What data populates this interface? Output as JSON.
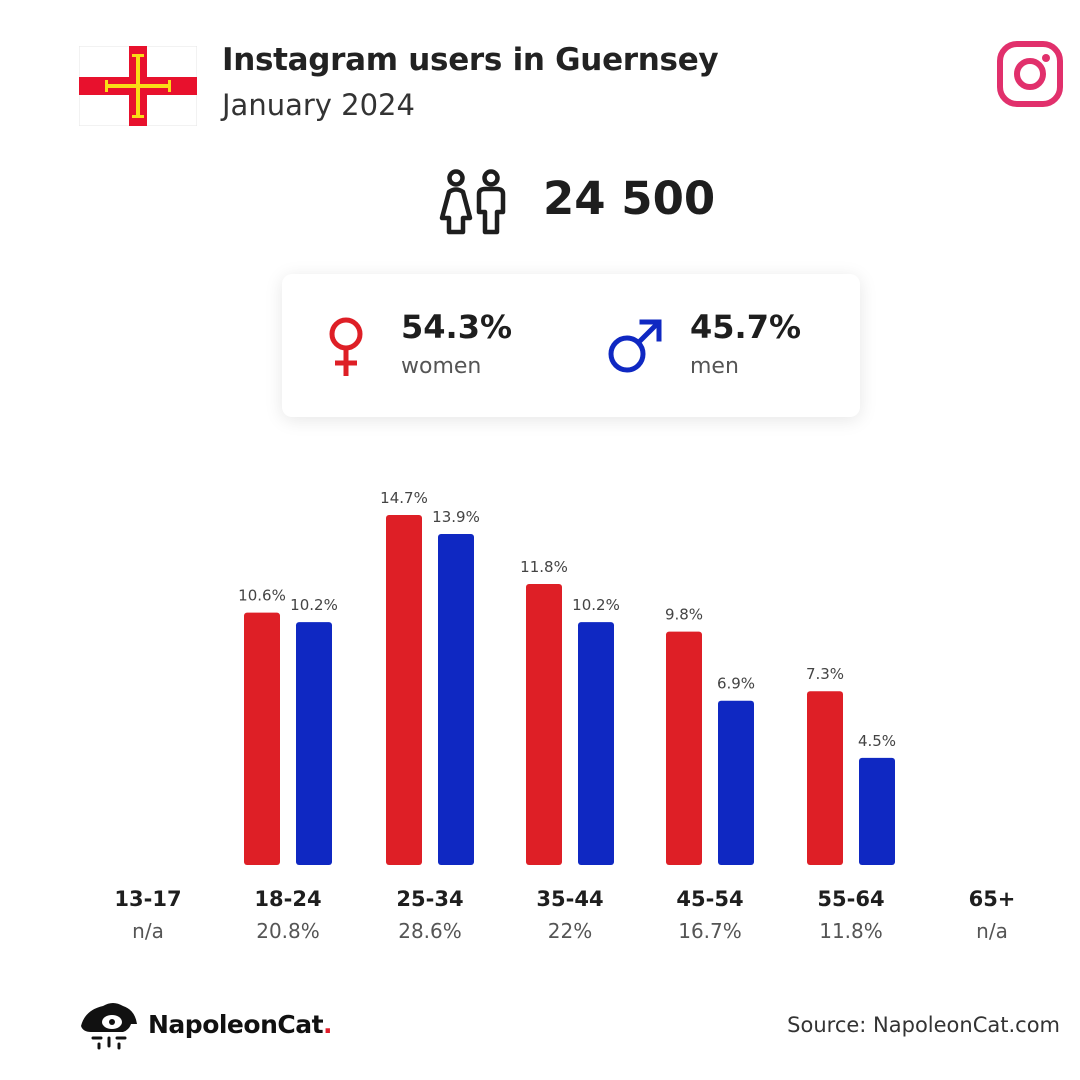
{
  "header": {
    "title": "Instagram users in Guernsey",
    "subtitle": "January 2024"
  },
  "icons": {
    "flag": "guernsey-flag-icon",
    "platform": "instagram-logo-icon",
    "people": "people-icon",
    "women": "female-symbol-icon",
    "men": "male-symbol-icon",
    "brand": "napoleoncat-logo-icon"
  },
  "total_users": "24 500",
  "gender": {
    "women": {
      "pct": "54.3%",
      "label": "women"
    },
    "men": {
      "pct": "45.7%",
      "label": "men"
    }
  },
  "colors": {
    "women": "#de1f26",
    "men": "#0f28c2",
    "instagram": "#e1306c",
    "flag_red": "#e8112d",
    "flag_gold": "#f9dd16"
  },
  "chart_data": {
    "type": "bar",
    "categories": [
      "13-17",
      "18-24",
      "25-34",
      "35-44",
      "45-54",
      "55-64",
      "65+"
    ],
    "category_totals": [
      "n/a",
      "20.8%",
      "28.6%",
      "22%",
      "16.7%",
      "11.8%",
      "n/a"
    ],
    "series": [
      {
        "key": "women",
        "values": [
          null,
          10.6,
          14.7,
          11.8,
          9.8,
          7.3,
          null
        ],
        "labels": [
          "",
          "10.6%",
          "14.7%",
          "11.8%",
          "9.8%",
          "7.3%",
          ""
        ]
      },
      {
        "key": "men",
        "values": [
          null,
          10.2,
          13.9,
          10.2,
          6.9,
          4.5,
          null
        ],
        "labels": [
          "",
          "10.2%",
          "13.9%",
          "10.2%",
          "6.9%",
          "4.5%",
          ""
        ]
      }
    ],
    "unit": "%",
    "ylim": [
      0,
      15
    ],
    "grid": false,
    "legend": "none"
  },
  "footer": {
    "brand_name": "NapoleonCat",
    "brand_dot": ".",
    "source": "Source: NapoleonCat.com"
  }
}
